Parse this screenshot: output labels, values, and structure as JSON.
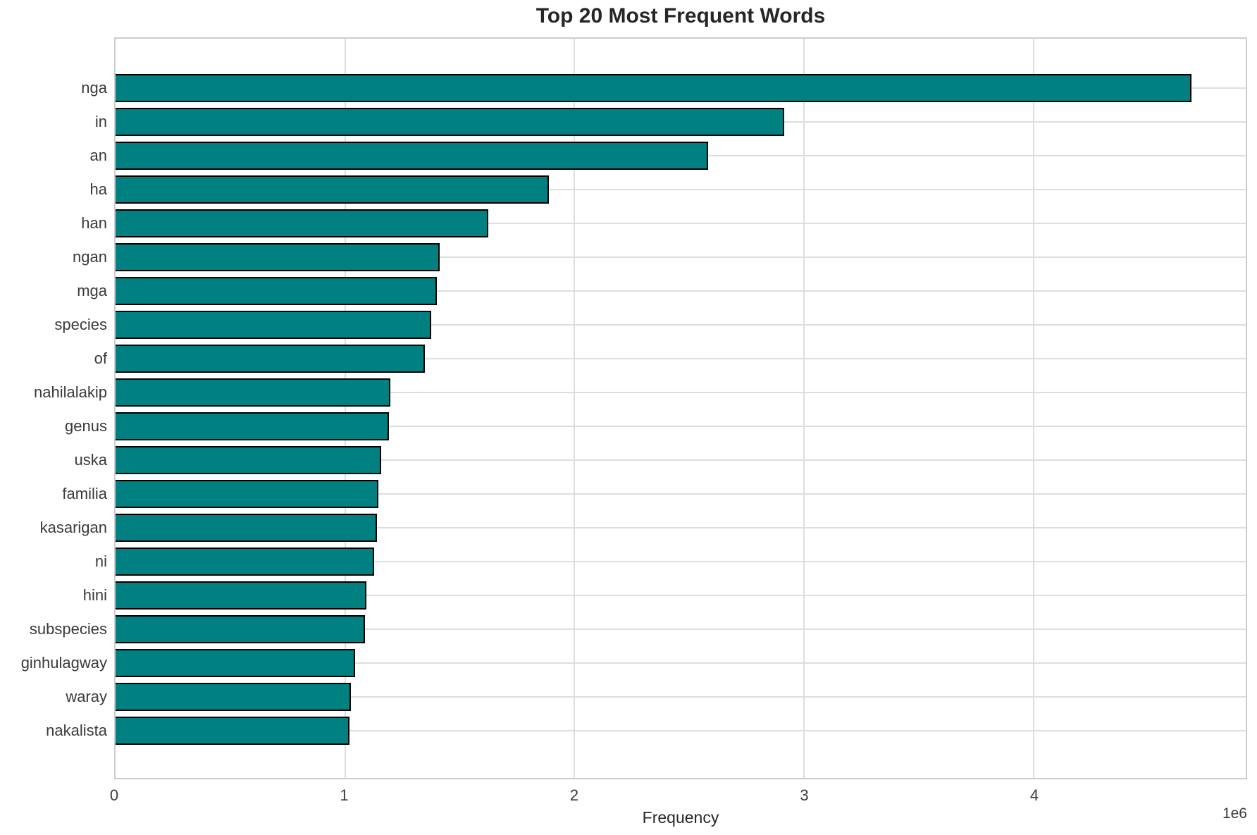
{
  "chart_data": {
    "type": "bar",
    "orientation": "horizontal",
    "title": "Top 20 Most Frequent Words",
    "xlabel": "Frequency",
    "ylabel": "",
    "x_offset_text": "1e6",
    "categories": [
      "nga",
      "in",
      "an",
      "ha",
      "han",
      "ngan",
      "mga",
      "species",
      "of",
      "nahilalakip",
      "genus",
      "uska",
      "familia",
      "kasarigan",
      "ni",
      "hini",
      "subspecies",
      "ginhulagway",
      "waray",
      "nakalista"
    ],
    "values": [
      4690000,
      2913000,
      2581000,
      1887000,
      1624000,
      1412000,
      1400000,
      1375000,
      1348000,
      1196000,
      1192000,
      1158000,
      1145000,
      1140000,
      1128000,
      1094000,
      1086000,
      1045000,
      1025000,
      1018000
    ],
    "xlim": [
      0,
      4925000
    ],
    "x_ticks": [
      0,
      1000000,
      2000000,
      3000000,
      4000000
    ],
    "x_tick_labels": [
      "0",
      "1",
      "2",
      "3",
      "4"
    ],
    "grid": true,
    "legend": false,
    "bar_color": "#008080",
    "bar_edge_color": "#000000",
    "grid_color": "#dedede",
    "spine_color": "#cdcdcd",
    "title_color": "#262626",
    "tick_label_color": "#3a3a3a"
  }
}
